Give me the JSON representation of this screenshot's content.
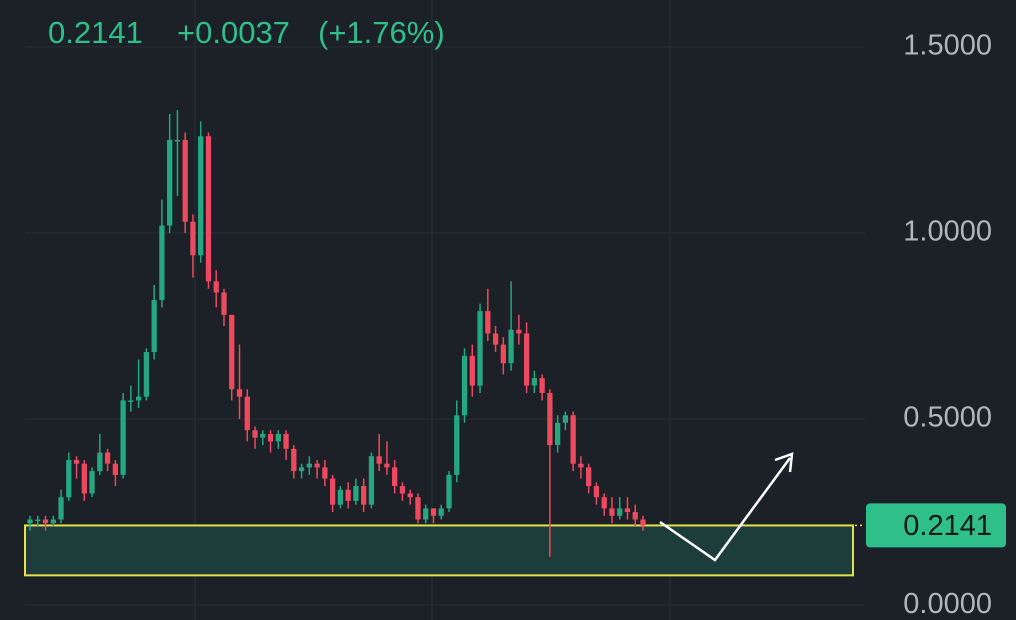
{
  "chart_data": {
    "type": "candlestick",
    "header": {
      "price": "0.2141",
      "change": "+0.0037",
      "change_pct": "(+1.76%)"
    },
    "open": [
      0.22,
      0.23,
      0.23,
      0.22,
      0.23,
      0.29,
      0.39,
      0.38,
      0.3,
      0.36,
      0.41,
      0.38,
      0.35,
      0.55,
      0.55,
      0.56,
      0.68,
      0.82,
      1.02,
      1.25,
      1.25,
      1.03,
      0.94,
      1.26,
      0.87,
      0.84,
      0.78,
      0.58,
      0.56,
      0.47,
      0.45,
      0.46,
      0.44,
      0.46,
      0.42,
      0.36,
      0.37,
      0.38,
      0.37,
      0.34,
      0.27,
      0.31,
      0.28,
      0.32,
      0.27,
      0.4,
      0.38,
      0.37,
      0.32,
      0.3,
      0.29,
      0.23,
      0.26,
      0.24,
      0.26,
      0.35,
      0.51,
      0.67,
      0.59,
      0.79,
      0.73,
      0.7,
      0.65,
      0.74,
      0.73,
      0.59,
      0.61,
      0.57,
      0.43,
      0.49,
      0.51,
      0.38,
      0.37,
      0.32,
      0.29,
      0.26,
      0.24,
      0.26,
      0.25,
      0.23
    ],
    "high": [
      0.24,
      0.24,
      0.24,
      0.24,
      0.31,
      0.41,
      0.4,
      0.39,
      0.37,
      0.46,
      0.42,
      0.39,
      0.57,
      0.59,
      0.66,
      0.69,
      0.86,
      1.09,
      1.32,
      1.33,
      1.27,
      1.05,
      1.3,
      1.27,
      0.9,
      0.85,
      0.78,
      0.7,
      0.58,
      0.48,
      0.47,
      0.47,
      0.47,
      0.47,
      0.43,
      0.38,
      0.4,
      0.39,
      0.39,
      0.35,
      0.32,
      0.33,
      0.34,
      0.34,
      0.41,
      0.46,
      0.44,
      0.39,
      0.33,
      0.31,
      0.3,
      0.27,
      0.26,
      0.27,
      0.36,
      0.55,
      0.69,
      0.7,
      0.81,
      0.85,
      0.75,
      0.72,
      0.87,
      0.78,
      0.76,
      0.63,
      0.62,
      0.58,
      0.51,
      0.52,
      0.52,
      0.4,
      0.38,
      0.33,
      0.3,
      0.29,
      0.29,
      0.29,
      0.27,
      0.24
    ],
    "low": [
      0.2,
      0.21,
      0.2,
      0.21,
      0.22,
      0.28,
      0.34,
      0.28,
      0.29,
      0.35,
      0.36,
      0.32,
      0.34,
      0.52,
      0.53,
      0.55,
      0.66,
      0.8,
      1.0,
      1.1,
      1.0,
      0.88,
      0.92,
      0.85,
      0.8,
      0.75,
      0.55,
      0.5,
      0.44,
      0.42,
      0.43,
      0.41,
      0.42,
      0.39,
      0.34,
      0.34,
      0.35,
      0.34,
      0.32,
      0.25,
      0.26,
      0.26,
      0.27,
      0.25,
      0.26,
      0.36,
      0.35,
      0.3,
      0.28,
      0.27,
      0.22,
      0.22,
      0.22,
      0.23,
      0.25,
      0.33,
      0.49,
      0.56,
      0.57,
      0.71,
      0.68,
      0.62,
      0.63,
      0.7,
      0.57,
      0.57,
      0.55,
      0.13,
      0.41,
      0.47,
      0.36,
      0.34,
      0.3,
      0.27,
      0.24,
      0.22,
      0.23,
      0.23,
      0.21,
      0.2
    ],
    "close": [
      0.23,
      0.23,
      0.22,
      0.23,
      0.29,
      0.39,
      0.38,
      0.3,
      0.36,
      0.41,
      0.38,
      0.35,
      0.55,
      0.55,
      0.56,
      0.68,
      0.82,
      1.02,
      1.25,
      1.25,
      1.03,
      0.94,
      1.26,
      0.87,
      0.84,
      0.78,
      0.58,
      0.56,
      0.47,
      0.45,
      0.46,
      0.44,
      0.46,
      0.42,
      0.36,
      0.37,
      0.38,
      0.37,
      0.34,
      0.27,
      0.31,
      0.28,
      0.32,
      0.27,
      0.4,
      0.38,
      0.37,
      0.32,
      0.3,
      0.29,
      0.23,
      0.26,
      0.24,
      0.26,
      0.35,
      0.51,
      0.67,
      0.59,
      0.79,
      0.73,
      0.7,
      0.65,
      0.74,
      0.73,
      0.59,
      0.61,
      0.57,
      0.43,
      0.49,
      0.51,
      0.38,
      0.37,
      0.32,
      0.29,
      0.26,
      0.24,
      0.26,
      0.25,
      0.23,
      0.2141
    ],
    "up_color": "#27a682",
    "down_color": "#ee4a5f",
    "ylim": [
      -0.04,
      1.626
    ],
    "yticks": [
      {
        "value": 0,
        "label": "0.0000"
      },
      {
        "value": 0.5,
        "label": "0.5000"
      },
      {
        "value": 1,
        "label": "1.0000"
      },
      {
        "value": 1.5,
        "label": "1.5000"
      }
    ],
    "grid": true,
    "last_price": {
      "value": 0.2141,
      "label": "0.2141"
    },
    "zone": {
      "low": 0.08,
      "high": 0.2141
    }
  }
}
